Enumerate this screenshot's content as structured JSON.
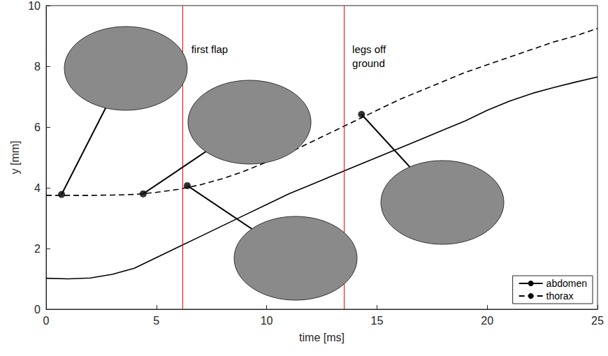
{
  "chart_data": {
    "type": "line",
    "xlabel": "time [ms]",
    "ylabel": "y [mm]",
    "x": [
      0,
      1,
      2,
      3,
      4,
      5,
      6,
      7,
      8,
      9,
      10,
      11,
      12,
      13,
      14,
      15,
      16,
      17,
      18,
      19,
      20,
      21,
      22,
      23,
      24,
      25
    ],
    "series": [
      {
        "name": "abdomen",
        "color": "#000000",
        "line_style": "solid",
        "values": [
          1.02,
          1.0,
          1.03,
          1.15,
          1.35,
          1.7,
          2.05,
          2.4,
          2.75,
          3.1,
          3.45,
          3.8,
          4.1,
          4.4,
          4.7,
          5.0,
          5.3,
          5.6,
          5.9,
          6.2,
          6.55,
          6.85,
          7.1,
          7.3,
          7.48,
          7.65
        ]
      },
      {
        "name": "thorax",
        "color": "#000000",
        "line_style": "dashed",
        "values": [
          3.75,
          3.75,
          3.75,
          3.76,
          3.78,
          3.85,
          3.95,
          4.1,
          4.3,
          4.55,
          4.85,
          5.15,
          5.5,
          5.85,
          6.2,
          6.55,
          6.9,
          7.2,
          7.5,
          7.8,
          8.05,
          8.3,
          8.55,
          8.8,
          9.0,
          9.25
        ]
      }
    ],
    "highlighted_points": {
      "x": [
        0.7,
        4.4,
        6.4,
        14.3
      ],
      "y": [
        3.78,
        3.8,
        4.07,
        6.42
      ],
      "color": "#000000"
    },
    "annotations": [
      {
        "x": 6.2,
        "text": "first flap",
        "color": "#ff0000"
      },
      {
        "x": 13.5,
        "text": "legs off ground",
        "color": "#ff0000"
      }
    ],
    "xlim": [
      0,
      25
    ],
    "xticks": [
      0,
      5,
      10,
      15,
      20,
      25
    ],
    "ylim": [
      0,
      10
    ],
    "yticks": [
      0,
      2,
      4,
      6,
      8,
      10
    ],
    "legend": "lower right",
    "grid": false
  }
}
